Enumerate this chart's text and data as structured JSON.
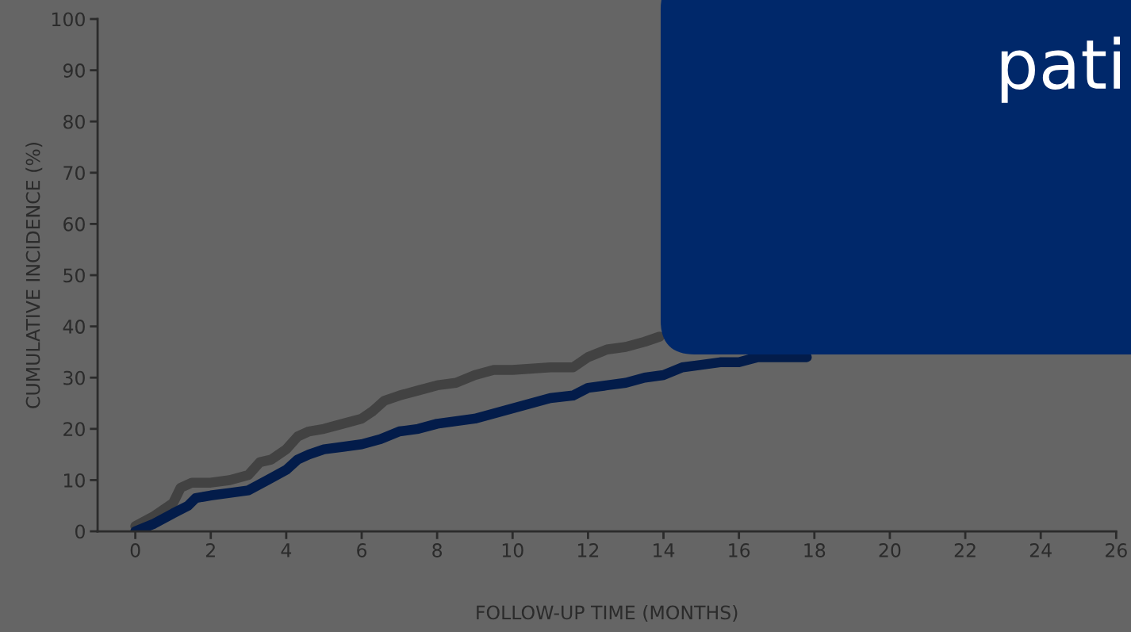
{
  "chart_data": {
    "type": "line",
    "xlabel": "FOLLOW-UP TIME (MONTHS)",
    "ylabel": "CUMULATIVE INCIDENCE (%)",
    "xlim": [
      -1,
      26
    ],
    "ylim": [
      0,
      100
    ],
    "xticks": [
      0,
      2,
      4,
      6,
      8,
      10,
      12,
      14,
      16,
      18,
      20,
      22,
      24,
      26
    ],
    "yticks": [
      0,
      10,
      20,
      30,
      40,
      50,
      60,
      70,
      80,
      90,
      100
    ],
    "grid": false,
    "line_style": "solid",
    "annotations": [
      "pati"
    ],
    "series": [
      {
        "color": "#424242",
        "x": [
          0,
          0.5,
          1,
          1.2,
          1.5,
          2,
          2.5,
          3,
          3.3,
          3.6,
          4,
          4.3,
          4.6,
          5,
          5.5,
          6,
          6.3,
          6.6,
          7,
          7.5,
          8,
          8.5,
          9,
          9.5,
          10,
          11,
          11.6,
          12,
          12.5,
          13,
          13.5,
          13.9
        ],
        "values": [
          1,
          3,
          5.5,
          8.5,
          9.5,
          9.5,
          10,
          11,
          13.5,
          14,
          16,
          18.5,
          19.5,
          20,
          21,
          22,
          23.5,
          25.5,
          26.5,
          27.5,
          28.5,
          29,
          30.5,
          31.5,
          31.5,
          32,
          32,
          34,
          35.5,
          36,
          37,
          38
        ]
      },
      {
        "color": "#031c4a",
        "x": [
          0,
          0.5,
          1,
          1.4,
          1.6,
          2,
          2.5,
          3,
          3.5,
          4,
          4.3,
          4.6,
          5,
          5.5,
          6,
          6.5,
          7,
          7.5,
          8,
          8.5,
          9,
          9.5,
          10,
          10.5,
          11,
          11.6,
          12,
          12.5,
          13,
          13.5,
          14,
          14.5,
          15,
          15.5,
          16,
          16.5,
          17,
          17.8
        ],
        "values": [
          0,
          1.5,
          3.5,
          5,
          6.5,
          7,
          7.5,
          8,
          10,
          12,
          14,
          15,
          16,
          16.5,
          17,
          18,
          19.5,
          20,
          21,
          21.5,
          22,
          23,
          24,
          25,
          26,
          26.5,
          28,
          28.5,
          29,
          30,
          30.5,
          32,
          32.5,
          33,
          33,
          34,
          34,
          34
        ]
      }
    ]
  }
}
